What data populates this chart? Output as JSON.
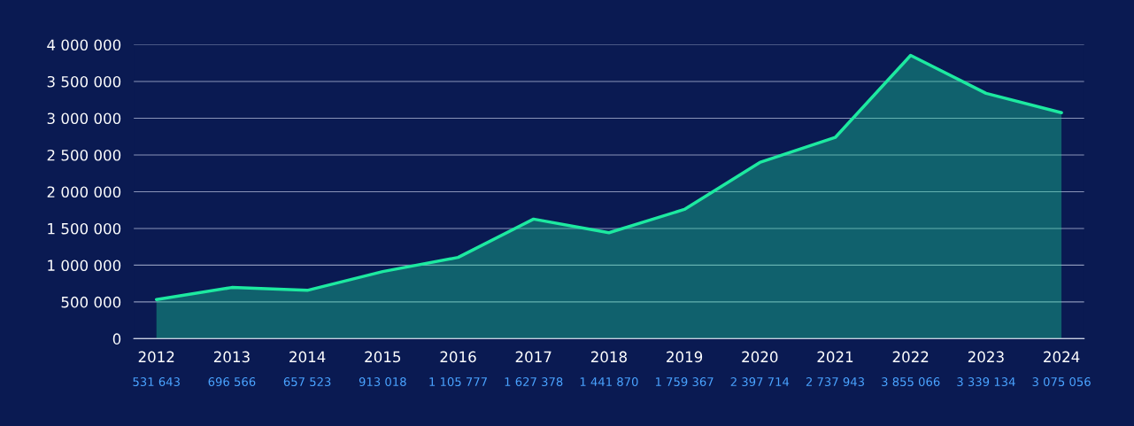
{
  "chart_data": {
    "type": "area",
    "categories": [
      "2012",
      "2013",
      "2014",
      "2015",
      "2016",
      "2017",
      "2018",
      "2019",
      "2020",
      "2021",
      "2022",
      "2023",
      "2024"
    ],
    "values": [
      531643,
      696566,
      657523,
      913018,
      1105777,
      1627378,
      1441870,
      1759367,
      2397714,
      2737943,
      3855066,
      3339134,
      3075056
    ],
    "value_labels": [
      "531 643",
      "696 566",
      "657 523",
      "913 018",
      "1 105 777",
      "1 627 378",
      "1 441 870",
      "1 759 367",
      "2 397 714",
      "2 737 943",
      "3 855 066",
      "3 339 134",
      "3 075 056"
    ],
    "color": "#1de9a0",
    "ylim": [
      0,
      4000000
    ],
    "yticks": [
      {
        "value": 0,
        "label": "0"
      },
      {
        "value": 500000,
        "label": "500 000"
      },
      {
        "value": 1000000,
        "label": "1 000 000"
      },
      {
        "value": 1500000,
        "label": "1 500 000"
      },
      {
        "value": 2000000,
        "label": "2 000 000"
      },
      {
        "value": 2500000,
        "label": "2 500 000"
      },
      {
        "value": 3000000,
        "label": "3 000 000"
      },
      {
        "value": 3500000,
        "label": "3 500 000"
      },
      {
        "value": 4000000,
        "label": "4 000 000"
      }
    ],
    "grid": "y"
  }
}
